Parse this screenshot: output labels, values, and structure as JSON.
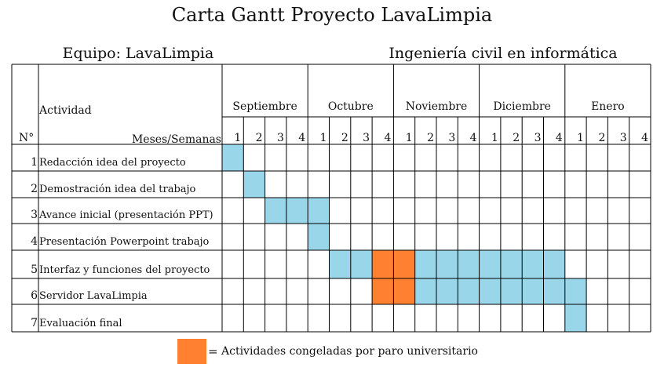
{
  "chart_data": {
    "type": "gantt",
    "title": "Carta Gantt Proyecto LavaLimpia",
    "team_label": "Equipo: LavaLimpia",
    "program_label": "Ingeniería civil en informática",
    "header": {
      "activity": "Actividad",
      "number": "N°",
      "months_weeks": "Meses/Semanas"
    },
    "months": [
      "Septiembre",
      "Octubre",
      "Noviembre",
      "Diciembre",
      "Enero"
    ],
    "weeks_per_month": [
      "1",
      "2",
      "3",
      "4"
    ],
    "activities": [
      {
        "n": "1",
        "name": "Redacción idea del proyecto",
        "active": [
          1
        ],
        "frozen": []
      },
      {
        "n": "2",
        "name": "Demostración idea del trabajo",
        "active": [
          2
        ],
        "frozen": []
      },
      {
        "n": "3",
        "name": "Avance inicial (presentación PPT)",
        "active": [
          3,
          4,
          5
        ],
        "frozen": []
      },
      {
        "n": "4",
        "name": "Presentación Powerpoint trabajo",
        "active": [
          5
        ],
        "frozen": []
      },
      {
        "n": "5",
        "name": "Interfaz y funciones del proyecto",
        "active": [
          6,
          7,
          10,
          11,
          12,
          13,
          14,
          15,
          16
        ],
        "frozen": [
          8,
          9
        ]
      },
      {
        "n": "6",
        "name": "Servidor LavaLimpia",
        "active": [
          10,
          11,
          12,
          13,
          14,
          15,
          16,
          17
        ],
        "frozen": [
          8,
          9
        ]
      },
      {
        "n": "7",
        "name": "Evaluación final",
        "active": [
          17
        ],
        "frozen": []
      }
    ],
    "legend": {
      "symbol": "=",
      "label": "Actividades congeladas por paro universitario"
    },
    "colors": {
      "active": "#99d6ea",
      "frozen": "#ff8030",
      "grid": "#000000"
    }
  }
}
